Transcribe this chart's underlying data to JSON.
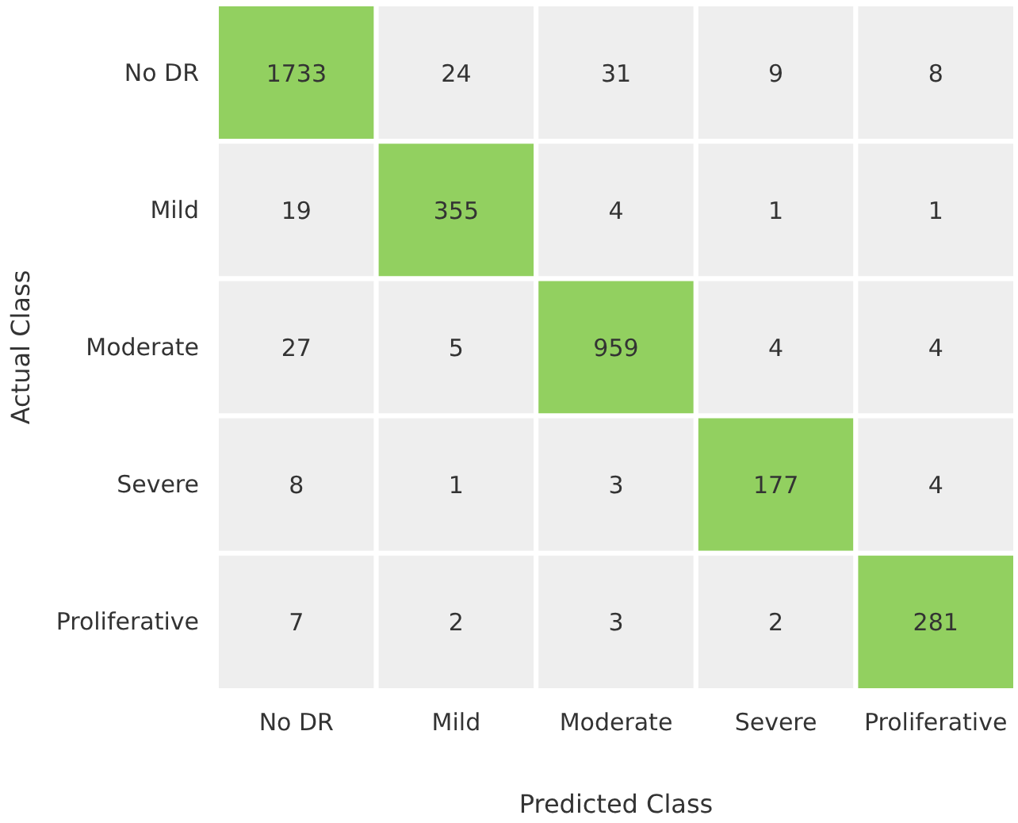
{
  "chart_data": {
    "type": "heatmap",
    "xlabel": "Predicted Class",
    "ylabel": "Actual Class",
    "categories": [
      "No DR",
      "Mild",
      "Moderate",
      "Severe",
      "Proliferative"
    ],
    "y_categories": [
      "No DR",
      "Mild",
      "Moderate",
      "Severe",
      "Proliferative"
    ],
    "cells": [
      [
        1733,
        24,
        31,
        9,
        8
      ],
      [
        19,
        355,
        4,
        1,
        1
      ],
      [
        27,
        5,
        959,
        4,
        4
      ],
      [
        8,
        1,
        3,
        177,
        4
      ],
      [
        7,
        2,
        3,
        2,
        281
      ]
    ],
    "colors": [
      [
        "#92d060",
        "#eeeeee",
        "#eeeeee",
        "#eeeeee",
        "#eeeeee"
      ],
      [
        "#eeeeee",
        "#92d060",
        "#eeeeee",
        "#eeeeee",
        "#eeeeee"
      ],
      [
        "#eeeeee",
        "#eeeeee",
        "#92d060",
        "#eeeeee",
        "#eeeeee"
      ],
      [
        "#eeeeee",
        "#eeeeee",
        "#eeeeee",
        "#92d060",
        "#eeeeee"
      ],
      [
        "#eeeeee",
        "#eeeeee",
        "#eeeeee",
        "#eeeeee",
        "#92d060"
      ]
    ],
    "data_labels": true
  }
}
